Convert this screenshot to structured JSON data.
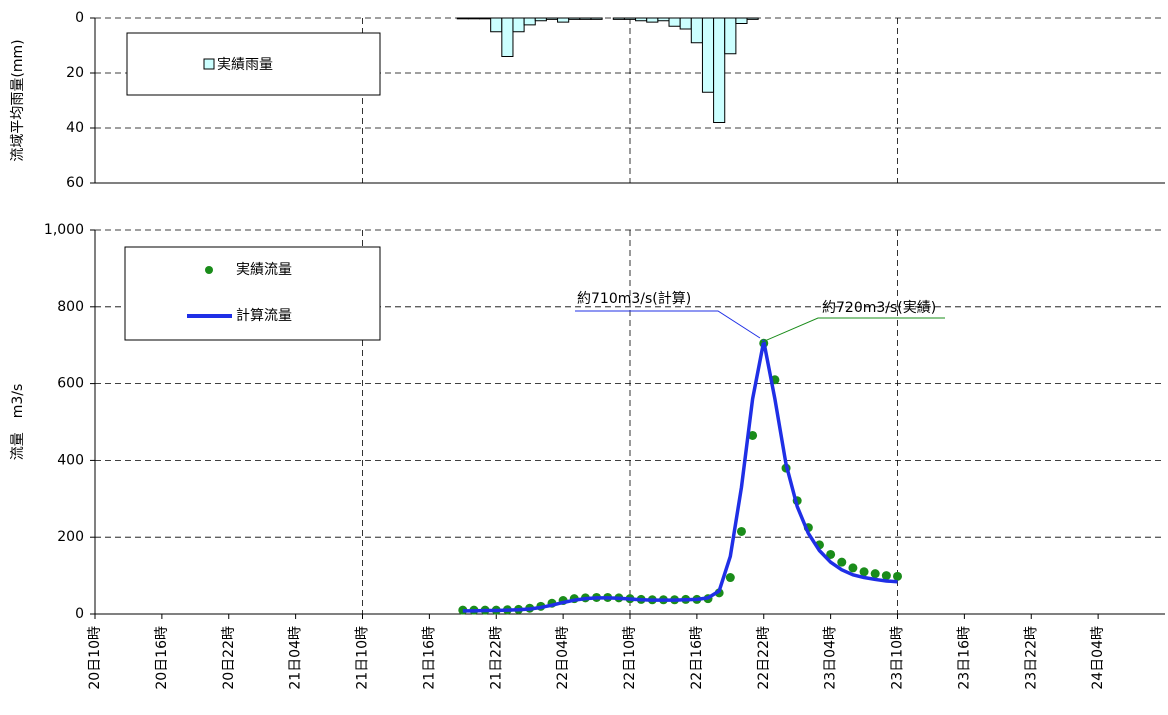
{
  "chart_data": [
    {
      "type": "bar",
      "ylabel": "流域平均雨量(mm)",
      "y_inverted": true,
      "xlim": [
        "20日10時",
        "24日10時"
      ],
      "xgrid": [
        "21日10時",
        "22日10時",
        "23日10時"
      ],
      "ylim": [
        0,
        60
      ],
      "yticks": [
        0,
        20,
        40,
        60
      ],
      "grid": true,
      "series": [
        {
          "name": "実績雨量",
          "color": "#ccffff",
          "x": [
            "21日19時",
            "21日20時",
            "21日21時",
            "21日22時",
            "21日23時",
            "22日00時",
            "22日01時",
            "22日02時",
            "22日03時",
            "22日04時",
            "22日05時",
            "22日06時",
            "22日07時",
            "22日08時",
            "22日09時",
            "22日10時",
            "22日11時",
            "22日12時",
            "22日13時",
            "22日14時",
            "22日15時",
            "22日16時",
            "22日17時",
            "22日18時",
            "22日19時",
            "22日20時",
            "22日21時"
          ],
          "values": [
            0.3,
            0.3,
            0.3,
            5,
            14,
            5,
            2.5,
            1,
            0.5,
            1.5,
            0.5,
            0.5,
            0.5,
            0,
            0.5,
            0.5,
            1,
            1.5,
            1,
            3,
            4,
            9,
            27,
            38,
            13,
            2,
            0.5
          ]
        }
      ]
    },
    {
      "type": "line",
      "ylabel": "流量　m3/s",
      "xlim": [
        "20日10時",
        "24日10時"
      ],
      "xgrid": [
        "21日10時",
        "22日10時",
        "23日10時"
      ],
      "xticks": [
        "20日10時",
        "20日16時",
        "20日22時",
        "21日04時",
        "21日10時",
        "21日16時",
        "21日22時",
        "22日04時",
        "22日10時",
        "22日16時",
        "22日22時",
        "23日04時",
        "23日10時",
        "23日16時",
        "23日22時",
        "24日04時"
      ],
      "ylim": [
        0,
        1000
      ],
      "yticks": [
        0,
        200,
        400,
        600,
        800,
        {
          "value": 1000,
          "label": "1,000"
        }
      ],
      "grid": true,
      "x": [
        "21日19時",
        "21日20時",
        "21日21時",
        "21日22時",
        "21日23時",
        "22日00時",
        "22日01時",
        "22日02時",
        "22日03時",
        "22日04時",
        "22日05時",
        "22日06時",
        "22日07時",
        "22日08時",
        "22日09時",
        "22日10時",
        "22日11時",
        "22日12時",
        "22日13時",
        "22日14時",
        "22日15時",
        "22日16時",
        "22日17時",
        "22日18時",
        "22日19時",
        "22日20時",
        "22日21時",
        "22日22時",
        "22日23時",
        "23日00時",
        "23日01時",
        "23日02時",
        "23日03時",
        "23日04時",
        "23日05時",
        "23日06時",
        "23日07時",
        "23日08時",
        "23日09時",
        "23日10時"
      ],
      "series": [
        {
          "name": "実績流量",
          "kind": "scatter",
          "color": "#1a8c1a",
          "values": [
            10,
            10,
            10,
            10,
            11,
            12,
            15,
            20,
            28,
            35,
            40,
            42,
            43,
            43,
            42,
            40,
            38,
            37,
            37,
            37,
            38,
            38,
            40,
            55,
            95,
            215,
            465,
            705,
            610,
            380,
            295,
            225,
            180,
            155,
            135,
            120,
            110,
            105,
            100,
            98
          ]
        },
        {
          "name": "計算流量",
          "kind": "line",
          "color": "#1f2fe6",
          "values": [
            8,
            8,
            9,
            9,
            10,
            11,
            13,
            17,
            23,
            30,
            36,
            40,
            42,
            42,
            41,
            39,
            37,
            36,
            36,
            36,
            37,
            38,
            42,
            60,
            150,
            330,
            560,
            710,
            560,
            390,
            280,
            210,
            165,
            135,
            115,
            102,
            95,
            90,
            86,
            84
          ]
        }
      ],
      "annotations": [
        "約710m3/s(計算)",
        "約720m3/s(実績)"
      ]
    }
  ]
}
